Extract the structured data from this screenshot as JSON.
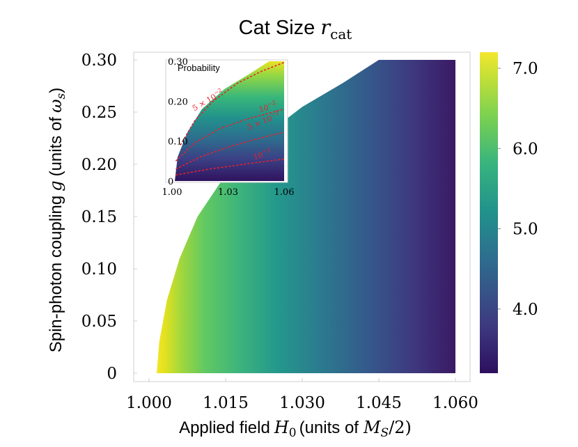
{
  "chart_data": [
    {
      "type": "heatmap",
      "title_text": "Cat Size",
      "title_symbol": "r",
      "title_subscript": "cat",
      "xlabel_text": "Applied field",
      "xlabel_symbol": "H",
      "xlabel_symbol_sub": "0",
      "xlabel_units": "(units of",
      "xlabel_units_symbol": "M",
      "xlabel_units_symbol_sub": "S",
      "xlabel_units_tail": "/2)",
      "ylabel_text": "Spin-photon coupling",
      "ylabel_symbol": "g",
      "ylabel_units": "(units of",
      "ylabel_units_symbol": "ω",
      "ylabel_units_symbol_sub": "s",
      "ylabel_units_tail": ")",
      "xlim": [
        1.0,
        1.06
      ],
      "ylim": [
        0,
        0.3
      ],
      "xticks": [
        1.0,
        1.015,
        1.03,
        1.045,
        1.06
      ],
      "xtick_labels": [
        "1.000",
        "1.015",
        "1.030",
        "1.045",
        "1.060"
      ],
      "yticks": [
        0,
        0.05,
        0.1,
        0.15,
        0.2,
        0.25,
        0.3
      ],
      "ytick_labels": [
        "0",
        "0.05",
        "0.10",
        "0.15",
        "0.20",
        "0.25",
        "0.30"
      ],
      "boundary": [
        {
          "x": 1.0015,
          "y": 0.0
        },
        {
          "x": 1.002,
          "y": 0.03
        },
        {
          "x": 1.0035,
          "y": 0.07
        },
        {
          "x": 1.006,
          "y": 0.11
        },
        {
          "x": 1.0095,
          "y": 0.15
        },
        {
          "x": 1.015,
          "y": 0.19
        },
        {
          "x": 1.022,
          "y": 0.225
        },
        {
          "x": 1.03,
          "y": 0.255
        },
        {
          "x": 1.038,
          "y": 0.278
        },
        {
          "x": 1.045,
          "y": 0.3
        }
      ],
      "colorbar": {
        "min": 3.2,
        "max": 7.2,
        "ticks": [
          4.0,
          5.0,
          6.0,
          7.0
        ],
        "tick_labels": [
          "4.0",
          "5.0",
          "6.0",
          "7.0"
        ],
        "colormap": "viridis"
      },
      "values_note": "r_cat ≈ 7.2 at the boundary, decreasing to ≈ 3.2 at H0 = 1.06"
    },
    {
      "type": "contour",
      "title": "Probability",
      "xlim": [
        1.0,
        1.06
      ],
      "ylim": [
        0,
        0.3
      ],
      "xticks": [
        1.0,
        1.03,
        1.06
      ],
      "xtick_labels": [
        "1.00",
        "1.03",
        "1.06"
      ],
      "yticks": [
        0,
        0.1,
        0.2,
        0.3
      ],
      "ytick_labels": [
        "0",
        "0.10",
        "0.20",
        "0.30"
      ],
      "boundary": [
        {
          "x": 1.0015,
          "y": 0.0
        },
        {
          "x": 1.003,
          "y": 0.06
        },
        {
          "x": 1.008,
          "y": 0.12
        },
        {
          "x": 1.016,
          "y": 0.18
        },
        {
          "x": 1.028,
          "y": 0.23
        },
        {
          "x": 1.042,
          "y": 0.27
        },
        {
          "x": 1.052,
          "y": 0.3
        }
      ],
      "contours": [
        {
          "label": "5 × 10⁻²",
          "label_base": "5 × 10",
          "label_exp": "−2",
          "points": [
            [
              1.0045,
              0.09
            ],
            [
              1.012,
              0.15
            ],
            [
              1.022,
              0.2
            ],
            [
              1.035,
              0.245
            ],
            [
              1.048,
              0.275
            ],
            [
              1.06,
              0.297
            ]
          ]
        },
        {
          "label": "10⁻²",
          "label_base": "10",
          "label_exp": "−2",
          "points": [
            [
              1.002,
              0.05
            ],
            [
              1.012,
              0.095
            ],
            [
              1.025,
              0.13
            ],
            [
              1.04,
              0.155
            ],
            [
              1.06,
              0.18
            ]
          ]
        },
        {
          "label": "5 × 10⁻³",
          "label_base": "5 × 10",
          "label_exp": "−3",
          "points": [
            [
              1.002,
              0.03
            ],
            [
              1.015,
              0.06
            ],
            [
              1.03,
              0.085
            ],
            [
              1.045,
              0.105
            ],
            [
              1.06,
              0.122
            ]
          ]
        },
        {
          "label": "10⁻³",
          "label_base": "10",
          "label_exp": "−3",
          "points": [
            [
              1.002,
              0.015
            ],
            [
              1.02,
              0.03
            ],
            [
              1.04,
              0.043
            ],
            [
              1.06,
              0.055
            ]
          ]
        }
      ],
      "contour_color": "#e8202a"
    }
  ]
}
